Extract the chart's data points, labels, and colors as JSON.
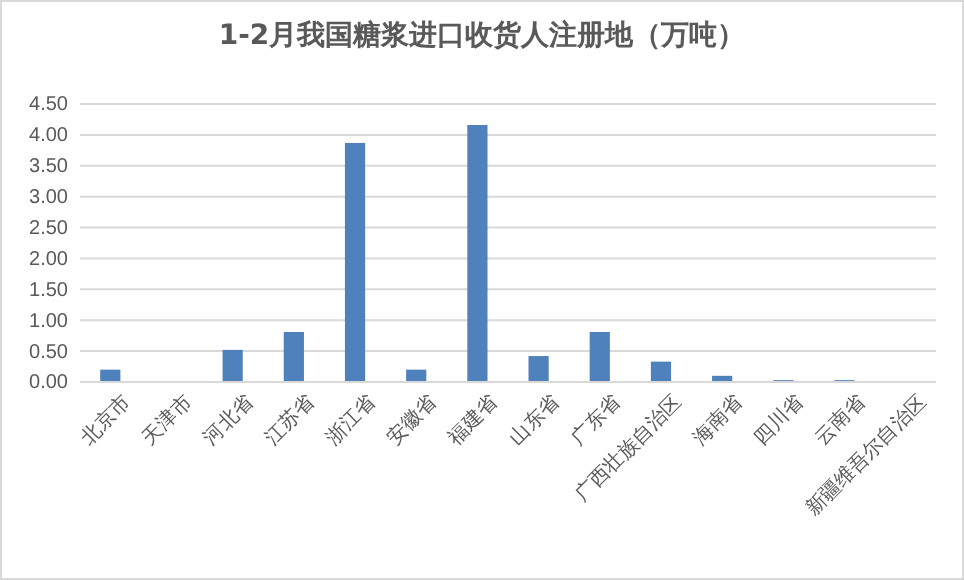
{
  "chart_data": {
    "type": "bar",
    "title": "1-2月我国糖浆进口收货人注册地（万吨）",
    "categories": [
      "北京市",
      "天津市",
      "河北省",
      "江苏省",
      "浙江省",
      "安徽省",
      "福建省",
      "山东省",
      "广东省",
      "广西壮族自治区",
      "海南省",
      "四川省",
      "云南省",
      "新疆维吾尔自治区"
    ],
    "values": [
      0.2,
      0,
      0.52,
      0.81,
      3.87,
      0.2,
      4.16,
      0.42,
      0.81,
      0.33,
      0.1,
      0.03,
      0.03,
      0
    ],
    "color": "#4f81bd",
    "ylim": [
      0,
      4.5
    ],
    "yticks": [
      {
        "value": 0,
        "label": "0.00"
      },
      {
        "value": 0.5,
        "label": "0.50"
      },
      {
        "value": 1,
        "label": "1.00"
      },
      {
        "value": 1.5,
        "label": "1.50"
      },
      {
        "value": 2,
        "label": "2.00"
      },
      {
        "value": 2.5,
        "label": "2.50"
      },
      {
        "value": 3,
        "label": "3.00"
      },
      {
        "value": 3.5,
        "label": "3.50"
      },
      {
        "value": 4,
        "label": "4.00"
      },
      {
        "value": 4.5,
        "label": "4.50"
      }
    ],
    "grid": "y"
  }
}
